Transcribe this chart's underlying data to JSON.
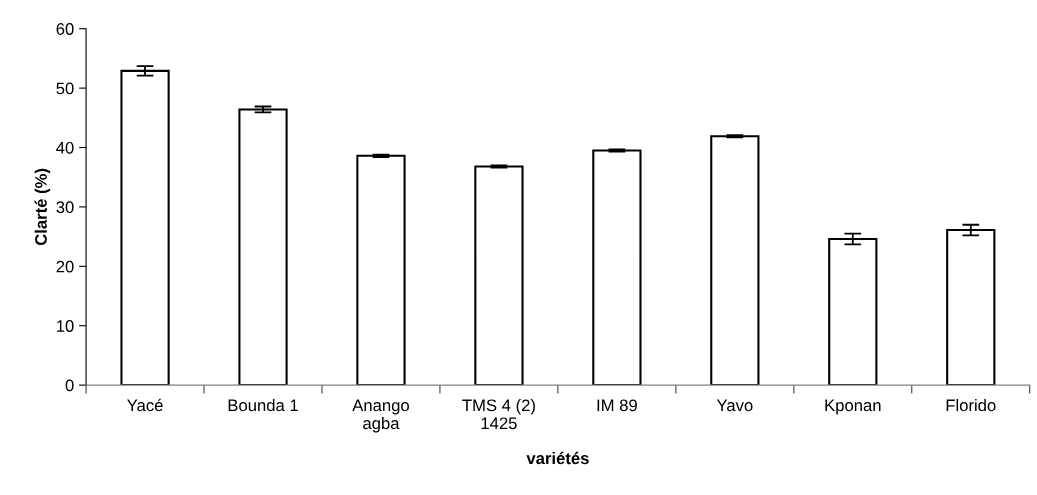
{
  "chart_data": {
    "type": "bar",
    "xlabel": "variétés",
    "ylabel": "Clarté (%)",
    "categories": [
      "Yacé",
      "Bounda 1",
      "Anango\nagba",
      "TMS 4 (2)\n1425",
      "IM 89",
      "Yavo",
      "Kponan",
      "Florido"
    ],
    "series": [
      {
        "color": "#ffffff",
        "values": [
          52.9,
          46.4,
          38.6,
          36.8,
          39.5,
          41.9,
          24.6,
          26.1
        ],
        "errors": [
          0.8,
          0.5,
          0.2,
          0.2,
          0.2,
          0.2,
          0.9,
          0.9
        ]
      }
    ],
    "ylim": [
      0,
      60
    ],
    "yticks": [
      0,
      10,
      20,
      30,
      40,
      50,
      60
    ],
    "grid": false,
    "legend": false
  }
}
